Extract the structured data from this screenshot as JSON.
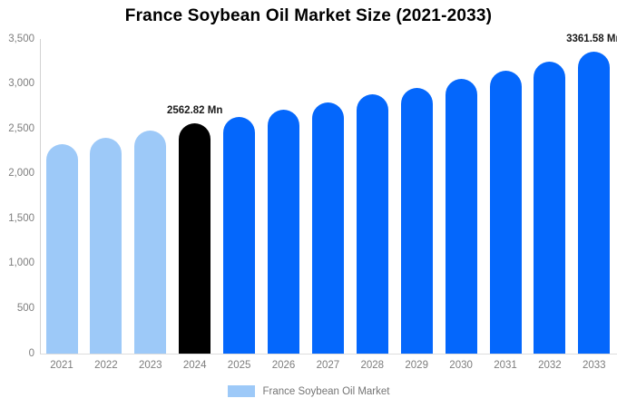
{
  "title": "France Soybean Oil Market Size (2021-2033)",
  "legend": {
    "label": "France Soybean Oil Market",
    "swatch_color": "#9DC9F8"
  },
  "colors": {
    "historical": "#9DC9F8",
    "current": "#000000",
    "forecast": "#0467FC",
    "axis_line": "#D2D2D2",
    "baseline": "#DDDDDD",
    "tick_text": "#7D7D7D",
    "legend_text": "#757575",
    "point_label_text": "#1A1A1A"
  },
  "chart_data": {
    "type": "bar",
    "title": "France Soybean Oil Market Size (2021-2033)",
    "unit": "Mn",
    "categories": [
      "2021",
      "2022",
      "2023",
      "2024",
      "2025",
      "2026",
      "2027",
      "2028",
      "2029",
      "2030",
      "2031",
      "2032",
      "2033"
    ],
    "values": [
      2335,
      2405,
      2480,
      2562.82,
      2635,
      2715,
      2795,
      2885,
      2960,
      3055,
      3150,
      3250,
      3361.58
    ],
    "bar_color_keys": [
      "historical",
      "historical",
      "historical",
      "current",
      "forecast",
      "forecast",
      "forecast",
      "forecast",
      "forecast",
      "forecast",
      "forecast",
      "forecast",
      "forecast"
    ],
    "point_labels": [
      "",
      "",
      "",
      "2562.82 Mn",
      "",
      "",
      "",
      "",
      "",
      "",
      "",
      "",
      "3361.58 Mn"
    ],
    "ylabel": "",
    "xlabel": "",
    "ylim": [
      0,
      3500
    ],
    "y_ticks": [
      "0",
      "500",
      "1,000",
      "1,500",
      "2,000",
      "2,500",
      "3,000",
      "3,500"
    ],
    "grid": false,
    "legend_position": "bottom",
    "legend_entries": [
      "France Soybean Oil Market"
    ]
  }
}
